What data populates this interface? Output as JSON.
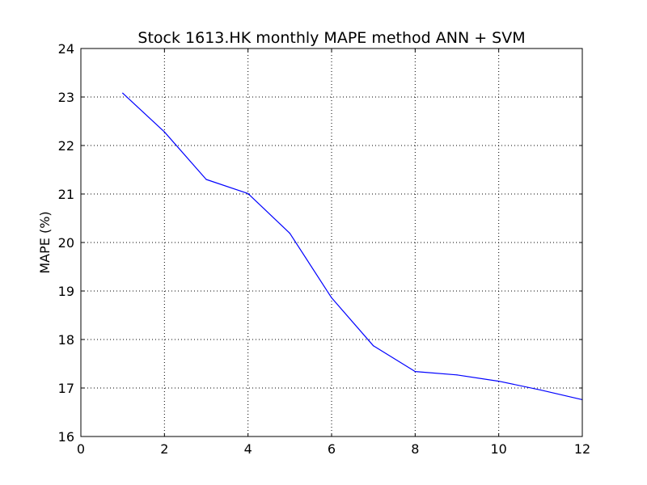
{
  "chart_data": {
    "type": "line",
    "title": "Stock 1613.HK monthly MAPE method ANN + SVM",
    "xlabel": "",
    "ylabel": "MAPE (%)",
    "xlim": [
      0,
      12
    ],
    "ylim": [
      16,
      24
    ],
    "xticks": [
      "0",
      "2",
      "4",
      "6",
      "8",
      "10",
      "12"
    ],
    "yticks": [
      "16",
      "17",
      "18",
      "19",
      "20",
      "21",
      "22",
      "23",
      "24"
    ],
    "grid": true,
    "series": [
      {
        "color": "#0000ff",
        "x": [
          1,
          2,
          3,
          4,
          5,
          6,
          7,
          8,
          9,
          10,
          11,
          12
        ],
        "y": [
          23.08,
          22.28,
          21.3,
          21.01,
          20.19,
          18.86,
          17.87,
          17.34,
          17.27,
          17.14,
          16.96,
          16.76
        ]
      }
    ]
  }
}
